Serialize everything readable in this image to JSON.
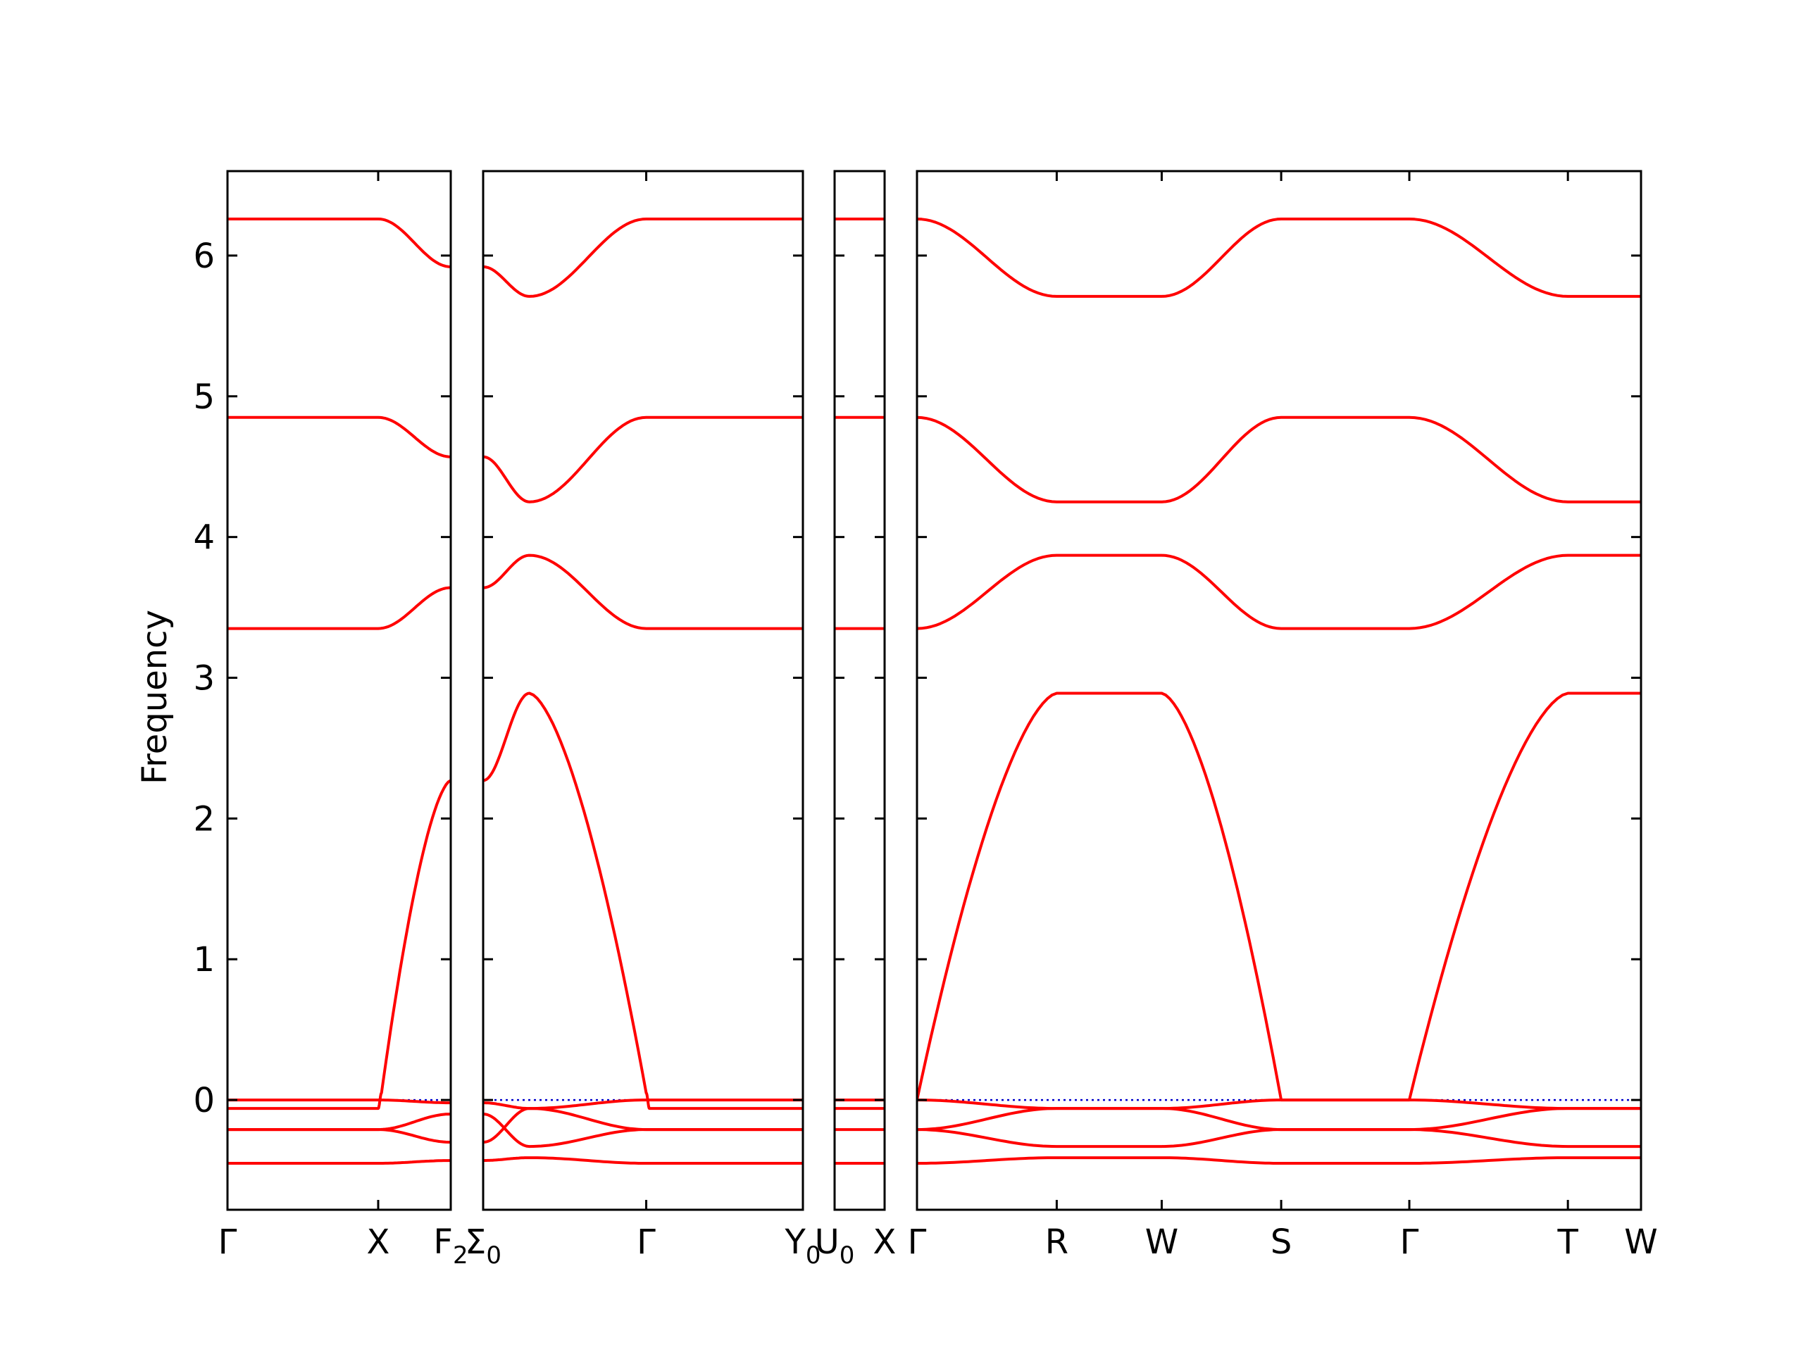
{
  "chart_data": {
    "type": "line",
    "title": "",
    "ylabel": "Frequency",
    "xlabel": "",
    "ylim": [
      -0.78,
      6.6
    ],
    "yticks": [
      0,
      1,
      2,
      3,
      4,
      5,
      6
    ],
    "grid": false,
    "band_color": "#ff0000",
    "zero_line_color": "#0000cc",
    "panels": [
      {
        "id": "panel-1",
        "xticks": [
          {
            "pos": 0.0,
            "label": "Γ"
          },
          {
            "pos": 0.675,
            "label": "X"
          },
          {
            "pos": 1.0,
            "label": "F",
            "sub": "2"
          }
        ],
        "bands": [
          [
            [
              0,
              6.26
            ],
            [
              0.675,
              6.26
            ],
            [
              1,
              5.92
            ]
          ],
          [
            [
              0,
              4.85
            ],
            [
              0.675,
              4.85
            ],
            [
              1,
              4.57
            ]
          ],
          [
            [
              0,
              3.35
            ],
            [
              0.675,
              3.35
            ],
            [
              1,
              3.64
            ]
          ],
          [
            [
              0,
              -0.06
            ],
            [
              0.675,
              -0.06
            ],
            [
              0.69,
              0.05
            ],
            [
              1,
              2.27
            ]
          ],
          [
            [
              0,
              0.0
            ],
            [
              0.675,
              0.0
            ],
            [
              1,
              -0.02
            ]
          ],
          [
            [
              0,
              -0.21
            ],
            [
              0.675,
              -0.21
            ],
            [
              1,
              -0.1
            ]
          ],
          [
            [
              0,
              -0.21
            ],
            [
              0.675,
              -0.21
            ],
            [
              1,
              -0.3
            ]
          ],
          [
            [
              0,
              -0.45
            ],
            [
              0.675,
              -0.45
            ],
            [
              1,
              -0.43
            ]
          ]
        ]
      },
      {
        "id": "panel-2",
        "xticks": [
          {
            "pos": 0.0,
            "label": "Σ",
            "sub": "0"
          },
          {
            "pos": 0.51,
            "label": "Γ"
          },
          {
            "pos": 1.0,
            "label": "Y",
            "sub": "0"
          }
        ],
        "bands": [
          [
            [
              0,
              5.92
            ],
            [
              0.145,
              5.71
            ],
            [
              0.51,
              6.26
            ],
            [
              1,
              6.26
            ]
          ],
          [
            [
              0,
              4.57
            ],
            [
              0.145,
              4.25
            ],
            [
              0.51,
              4.85
            ],
            [
              1,
              4.85
            ]
          ],
          [
            [
              0,
              3.64
            ],
            [
              0.145,
              3.87
            ],
            [
              0.51,
              3.35
            ],
            [
              1,
              3.35
            ]
          ],
          [
            [
              0,
              2.27
            ],
            [
              0.145,
              2.89
            ],
            [
              0.51,
              0.05
            ],
            [
              0.52,
              -0.06
            ],
            [
              1,
              -0.06
            ]
          ],
          [
            [
              0,
              -0.02
            ],
            [
              0.145,
              -0.06
            ],
            [
              0.51,
              0.0
            ],
            [
              1,
              0.0
            ]
          ],
          [
            [
              0,
              -0.1
            ],
            [
              0.145,
              -0.33
            ],
            [
              0.51,
              -0.21
            ],
            [
              1,
              -0.21
            ]
          ],
          [
            [
              0,
              -0.3
            ],
            [
              0.145,
              -0.06
            ],
            [
              0.51,
              -0.21
            ],
            [
              1,
              -0.21
            ]
          ],
          [
            [
              0,
              -0.43
            ],
            [
              0.145,
              -0.41
            ],
            [
              0.51,
              -0.45
            ],
            [
              1,
              -0.45
            ]
          ]
        ]
      },
      {
        "id": "panel-3",
        "xticks": [
          {
            "pos": 0.0,
            "label": "U",
            "sub": "0"
          },
          {
            "pos": 1.0,
            "label": "X"
          }
        ],
        "bands": [
          [
            [
              0,
              6.26
            ],
            [
              1,
              6.26
            ]
          ],
          [
            [
              0,
              4.85
            ],
            [
              1,
              4.85
            ]
          ],
          [
            [
              0,
              3.35
            ],
            [
              1,
              3.35
            ]
          ],
          [
            [
              0,
              0.0
            ],
            [
              1,
              0.0
            ]
          ],
          [
            [
              0,
              -0.06
            ],
            [
              1,
              -0.06
            ]
          ],
          [
            [
              0,
              -0.21
            ],
            [
              1,
              -0.21
            ]
          ],
          [
            [
              0,
              -0.45
            ],
            [
              1,
              -0.45
            ]
          ]
        ]
      },
      {
        "id": "panel-4",
        "xticks": [
          {
            "pos": 0.0,
            "label": "Γ"
          },
          {
            "pos": 0.193,
            "label": "R"
          },
          {
            "pos": 0.338,
            "label": "W"
          },
          {
            "pos": 0.503,
            "label": "S"
          },
          {
            "pos": 0.68,
            "label": "Γ"
          },
          {
            "pos": 0.899,
            "label": "T"
          },
          {
            "pos": 1.0,
            "label": "W"
          }
        ],
        "bands": [
          [
            [
              0,
              6.26
            ],
            [
              0.193,
              5.71
            ],
            [
              0.338,
              5.71
            ],
            [
              0.503,
              6.26
            ],
            [
              0.68,
              6.26
            ],
            [
              0.899,
              5.71
            ],
            [
              1,
              5.71
            ]
          ],
          [
            [
              0,
              4.85
            ],
            [
              0.193,
              4.25
            ],
            [
              0.338,
              4.25
            ],
            [
              0.503,
              4.85
            ],
            [
              0.68,
              4.85
            ],
            [
              0.899,
              4.25
            ],
            [
              1,
              4.25
            ]
          ],
          [
            [
              0,
              3.35
            ],
            [
              0.193,
              3.87
            ],
            [
              0.338,
              3.87
            ],
            [
              0.503,
              3.35
            ],
            [
              0.68,
              3.35
            ],
            [
              0.899,
              3.87
            ],
            [
              1,
              3.87
            ]
          ],
          [
            [
              0,
              0.0
            ],
            [
              0.193,
              2.89
            ],
            [
              0.338,
              2.89
            ],
            [
              0.503,
              0.0
            ],
            [
              0.68,
              0.0
            ],
            [
              0.899,
              2.89
            ],
            [
              1,
              2.89
            ]
          ],
          [
            [
              0,
              0.0
            ],
            [
              0.193,
              -0.06
            ],
            [
              0.338,
              -0.06
            ],
            [
              0.503,
              0.0
            ],
            [
              0.68,
              0.0
            ],
            [
              0.899,
              -0.06
            ],
            [
              1,
              -0.06
            ]
          ],
          [
            [
              0,
              -0.21
            ],
            [
              0.193,
              -0.06
            ],
            [
              0.338,
              -0.06
            ],
            [
              0.503,
              -0.21
            ],
            [
              0.68,
              -0.21
            ],
            [
              0.899,
              -0.06
            ],
            [
              1,
              -0.06
            ]
          ],
          [
            [
              0,
              -0.21
            ],
            [
              0.193,
              -0.33
            ],
            [
              0.338,
              -0.33
            ],
            [
              0.503,
              -0.21
            ],
            [
              0.68,
              -0.21
            ],
            [
              0.899,
              -0.33
            ],
            [
              1,
              -0.33
            ]
          ],
          [
            [
              0,
              -0.45
            ],
            [
              0.193,
              -0.41
            ],
            [
              0.338,
              -0.41
            ],
            [
              0.503,
              -0.45
            ],
            [
              0.68,
              -0.45
            ],
            [
              0.899,
              -0.41
            ],
            [
              1,
              -0.41
            ]
          ]
        ]
      }
    ]
  }
}
